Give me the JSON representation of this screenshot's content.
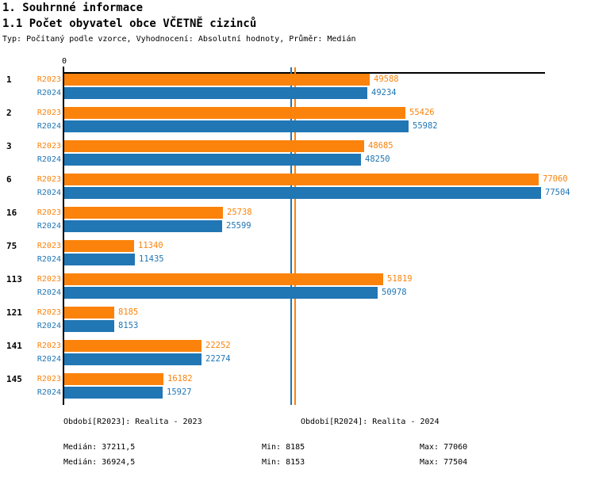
{
  "header": {
    "title": "1. Souhrnné informace",
    "subtitle": "1.1 Počet obyvatel obce VČETNĚ cizinců",
    "meta": "Typ: Počítaný podle vzorce, Vyhodnocení: Absolutní hodnoty, Průměr: Medián"
  },
  "colors": {
    "r2023_orange": "#FB830C",
    "r2024_blue": "#2176B4",
    "axis_black": "#000000"
  },
  "chart_data": {
    "type": "bar",
    "orientation": "horizontal",
    "title": "1.1 Počet obyvatel obce VČETNĚ cizinců",
    "xlabel": "",
    "ylabel": "",
    "origin_tick_label": "0",
    "xlim": [
      0,
      77504
    ],
    "grid": false,
    "legend_position": "bottom",
    "categories": [
      "1",
      "2",
      "3",
      "6",
      "16",
      "75",
      "113",
      "121",
      "141",
      "145"
    ],
    "series": [
      {
        "name": "R2023",
        "legend_label": "Období[R2023]: Realita - 2023",
        "color": "#FB830C",
        "values": [
          49588,
          55426,
          48685,
          77060,
          25738,
          11340,
          51819,
          8185,
          22252,
          16182
        ],
        "median": 37211.5,
        "min": 8185,
        "max": 77060
      },
      {
        "name": "R2024",
        "legend_label": "Období[R2024]: Realita - 2024",
        "color": "#2176B4",
        "values": [
          49234,
          55982,
          48250,
          77504,
          25599,
          11435,
          50978,
          8153,
          22274,
          15927
        ],
        "median": 36924.5,
        "min": 8153,
        "max": 77504
      }
    ],
    "median_reference_lines": [
      {
        "series": "R2024",
        "value": 36924.5,
        "color": "#2176B4"
      },
      {
        "series": "R2023",
        "value": 37211.5,
        "color": "#FB830C"
      }
    ]
  },
  "legend": {
    "r2023": {
      "label": "Období[R2023]: Realita - 2023"
    },
    "r2024": {
      "label": "Období[R2024]: Realita - 2024"
    }
  },
  "stats": {
    "r2023": {
      "median": "Medián: 37211,5",
      "min": "Min: 8185",
      "max": "Max: 77060"
    },
    "r2024": {
      "median": "Medián: 36924,5",
      "min": "Min: 8153",
      "max": "Max: 77504"
    }
  }
}
